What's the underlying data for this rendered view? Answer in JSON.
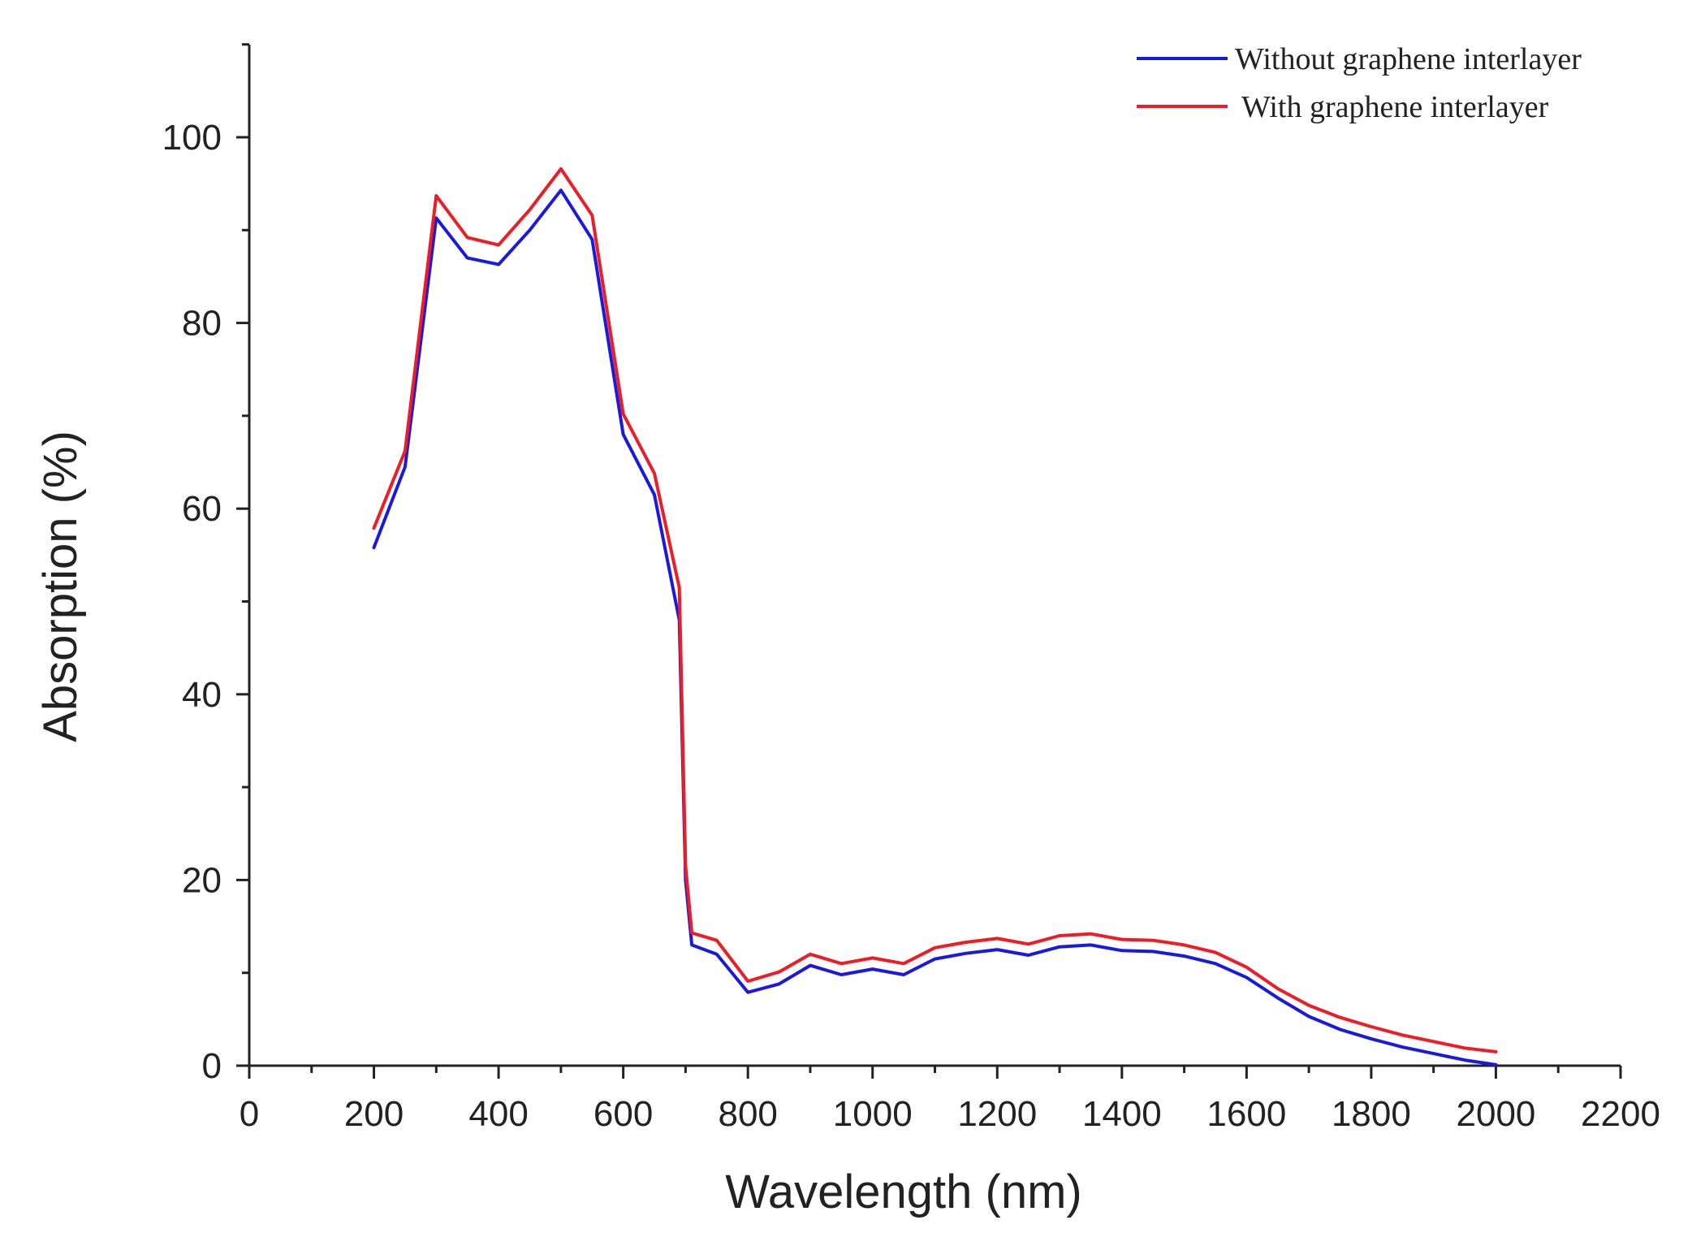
{
  "chart_data": {
    "type": "line",
    "title": "",
    "xlabel": "Wavelength (nm)",
    "ylabel": "Absorption (%)",
    "xlim": [
      0,
      2200
    ],
    "ylim": [
      0,
      110
    ],
    "xticks": [
      0,
      200,
      400,
      600,
      800,
      1000,
      1200,
      1400,
      1600,
      1800,
      2000,
      2200
    ],
    "xtick_labels": [
      "0",
      "200",
      "400",
      "600",
      "800",
      "1000",
      "1200",
      "1400",
      "1600",
      "1800",
      "2000",
      "2200"
    ],
    "yticks": [
      0,
      20,
      40,
      60,
      80,
      100
    ],
    "ytick_labels": [
      "0",
      "20",
      "40",
      "60",
      "80",
      "100"
    ],
    "grid": false,
    "legend_position": "top-right",
    "series": [
      {
        "name": "Without graphene interlayer",
        "color": "#1a1adf",
        "x": [
          200,
          250,
          300,
          350,
          400,
          450,
          500,
          550,
          600,
          650,
          690,
          700,
          710,
          750,
          800,
          850,
          900,
          950,
          1000,
          1050,
          1100,
          1150,
          1200,
          1250,
          1300,
          1350,
          1400,
          1450,
          1500,
          1550,
          1600,
          1650,
          1700,
          1750,
          1800,
          1850,
          1900,
          1950,
          2000
        ],
        "values": [
          55.8,
          64.5,
          91.3,
          87.0,
          86.3,
          90.0,
          94.3,
          89.0,
          68.0,
          61.5,
          48.0,
          20.0,
          13.0,
          12.0,
          7.9,
          8.8,
          10.8,
          9.8,
          10.4,
          9.8,
          11.5,
          12.1,
          12.5,
          11.9,
          12.8,
          13.0,
          12.4,
          12.3,
          11.8,
          11.0,
          9.5,
          7.3,
          5.3,
          3.9,
          2.9,
          2.0,
          1.3,
          0.6,
          0.1
        ]
      },
      {
        "name": "With graphene interlayer",
        "color": "#ee1c24",
        "x": [
          200,
          250,
          300,
          350,
          400,
          450,
          500,
          550,
          600,
          650,
          690,
          700,
          710,
          750,
          800,
          850,
          900,
          950,
          1000,
          1050,
          1100,
          1150,
          1200,
          1250,
          1300,
          1350,
          1400,
          1450,
          1500,
          1550,
          1600,
          1650,
          1700,
          1750,
          1800,
          1850,
          1900,
          1950,
          2000
        ],
        "values": [
          57.9,
          66.2,
          93.7,
          89.2,
          88.4,
          92.2,
          96.6,
          91.6,
          70.2,
          63.8,
          51.5,
          21.5,
          14.3,
          13.5,
          9.1,
          10.1,
          12.0,
          11.0,
          11.6,
          11.0,
          12.7,
          13.3,
          13.7,
          13.1,
          14.0,
          14.2,
          13.6,
          13.5,
          13.0,
          12.2,
          10.6,
          8.3,
          6.5,
          5.2,
          4.2,
          3.3,
          2.6,
          1.9,
          1.5
        ]
      }
    ]
  }
}
